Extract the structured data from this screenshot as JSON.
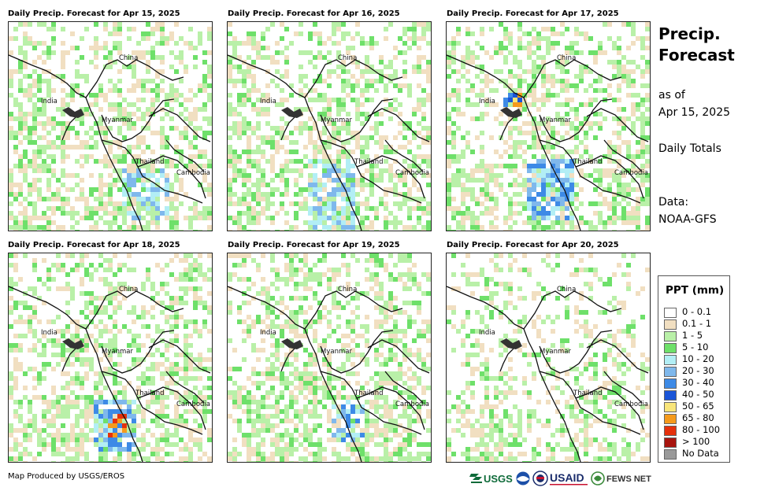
{
  "panels": [
    {
      "title": "Daily Precip. Forecast for Apr 15, 2025"
    },
    {
      "title": "Daily Precip. Forecast for Apr 16, 2025"
    },
    {
      "title": "Daily Precip. Forecast for Apr 17, 2025"
    },
    {
      "title": "Daily Precip. Forecast for Apr 18, 2025"
    },
    {
      "title": "Daily Precip. Forecast for Apr 19, 2025"
    },
    {
      "title": "Daily Precip. Forecast for Apr 20, 2025"
    }
  ],
  "map_labels": {
    "china": "China",
    "india": "India",
    "myanmar": "Myanmar",
    "thailand": "Thailand",
    "cambodia": "Cambodia"
  },
  "side": {
    "title": "Precip. Forecast",
    "as_of_label": "as of",
    "as_of_date": "Apr 15, 2025",
    "totals": "Daily Totals",
    "data_label": "Data:",
    "data_source": "NOAA-GFS"
  },
  "legend": {
    "title": "PPT (mm)",
    "items": [
      {
        "label": "0 - 0.1",
        "color": "#ffffff"
      },
      {
        "label": "0.1 - 1",
        "color": "#f1dfc1"
      },
      {
        "label": "1 - 5",
        "color": "#b9f0a8"
      },
      {
        "label": "5 - 10",
        "color": "#6ee06a"
      },
      {
        "label": "10 - 20",
        "color": "#b2eef5"
      },
      {
        "label": "20 - 30",
        "color": "#7fb8ec"
      },
      {
        "label": "30 - 40",
        "color": "#3d8ae6"
      },
      {
        "label": "40 - 50",
        "color": "#1a55d8"
      },
      {
        "label": "50 - 65",
        "color": "#f8e57a"
      },
      {
        "label": "65 - 80",
        "color": "#f59a1c"
      },
      {
        "label": "80 - 100",
        "color": "#e5300c"
      },
      {
        "label": "> 100",
        "color": "#a8140e"
      },
      {
        "label": "No Data",
        "color": "#999999"
      }
    ]
  },
  "footer": {
    "credit": "Map Produced by USGS/EROS",
    "logos": {
      "usgs": "USGS",
      "usaid": "USAID",
      "fewsnet": "FEWS NET"
    }
  }
}
